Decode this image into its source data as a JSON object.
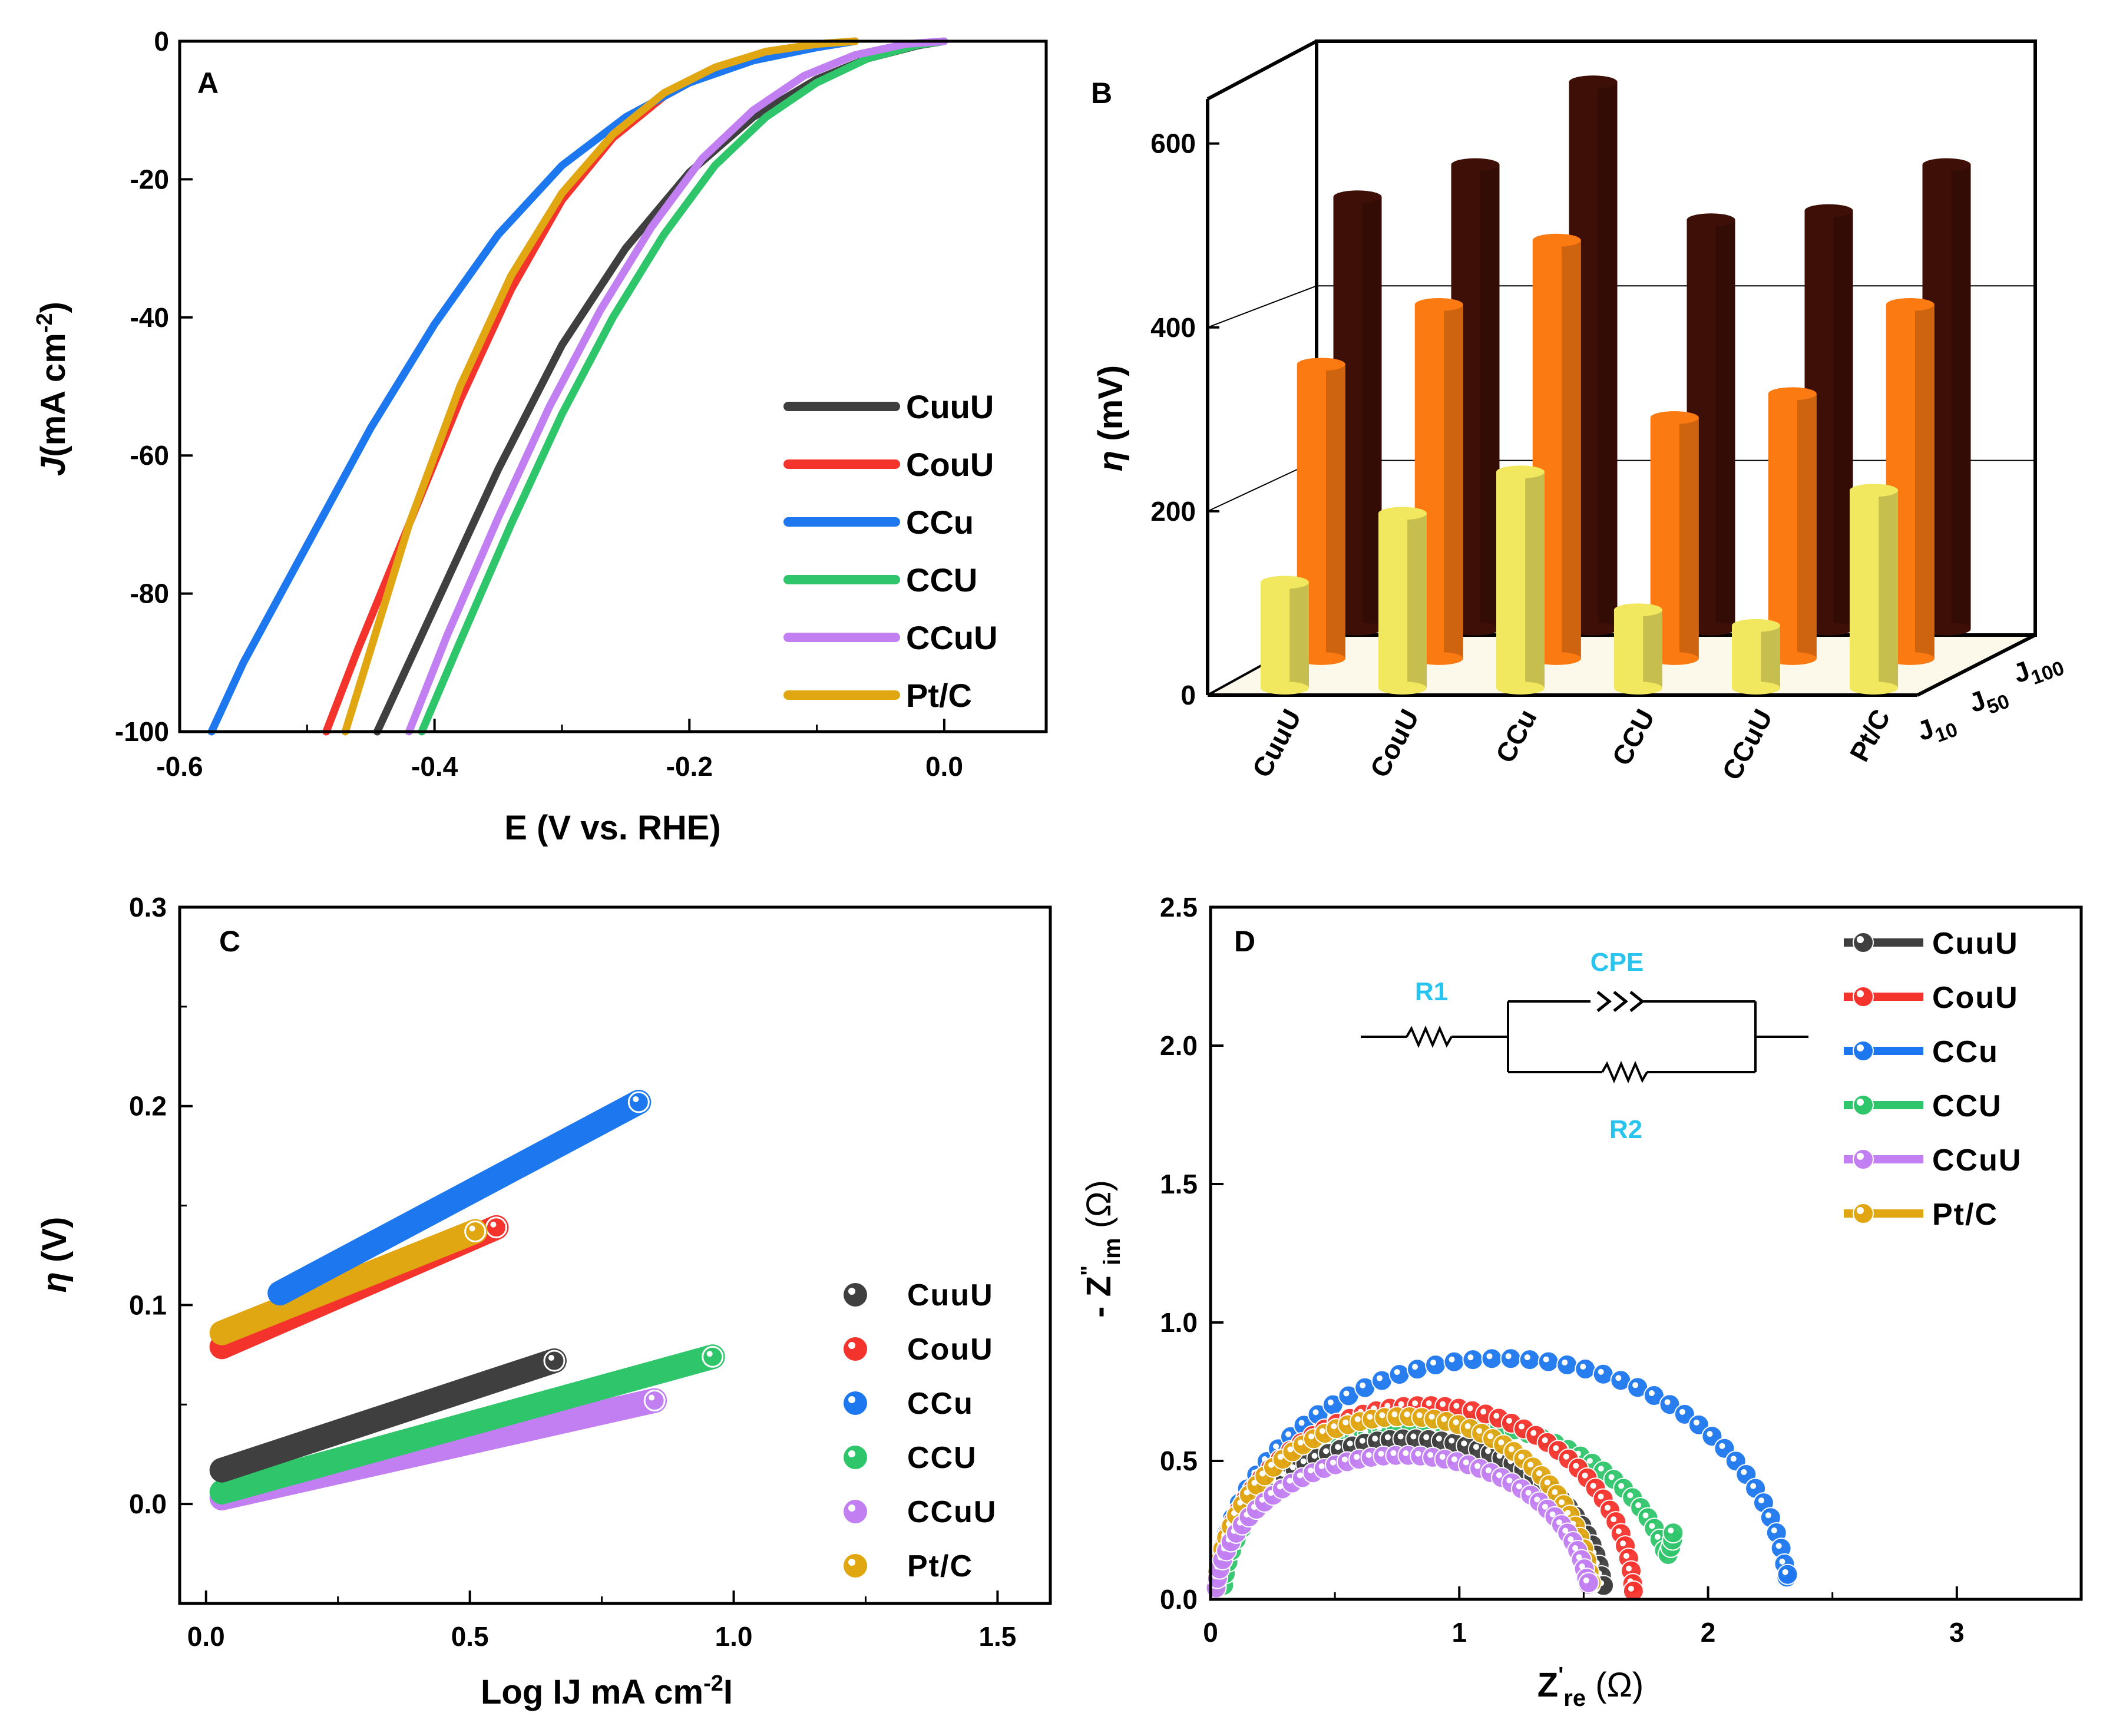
{
  "chart_data": [
    {
      "panel": "A",
      "type": "line",
      "xlabel": "E (V vs. RHE)",
      "ylabel": "J (mA cm-2)",
      "ylabel_parts": {
        "main": "J",
        "unit": "(mA cm",
        "exp": "-2",
        "close": ")"
      },
      "xlim": [
        -0.6,
        0.08
      ],
      "ylim": [
        -100,
        0
      ],
      "xticks": [
        -0.6,
        -0.4,
        -0.2,
        0.0
      ],
      "xtick_labels": [
        "-0.6",
        "-0.4",
        "-0.2",
        "0.0"
      ],
      "yticks": [
        0,
        -20,
        -40,
        -60,
        -80,
        -100
      ],
      "ytick_labels": [
        "0",
        "-20",
        "-40",
        "-60",
        "-80",
        "-100"
      ],
      "legend_position": "bottom-right",
      "series": [
        {
          "name": "CuuU",
          "color": "#3f3f3f",
          "points": [
            [
              -0.445,
              -100
            ],
            [
              -0.42,
              -90
            ],
            [
              -0.39,
              -78
            ],
            [
              -0.35,
              -62
            ],
            [
              -0.3,
              -44
            ],
            [
              -0.25,
              -30
            ],
            [
              -0.2,
              -19
            ],
            [
              -0.15,
              -11
            ],
            [
              -0.1,
              -5.5
            ],
            [
              -0.06,
              -2.5
            ],
            [
              -0.02,
              -0.6
            ],
            [
              0.0,
              0
            ]
          ]
        },
        {
          "name": "CouU",
          "color": "#f5332d",
          "points": [
            [
              -0.485,
              -100
            ],
            [
              -0.46,
              -88
            ],
            [
              -0.42,
              -70
            ],
            [
              -0.38,
              -52
            ],
            [
              -0.34,
              -36
            ],
            [
              -0.3,
              -23
            ],
            [
              -0.26,
              -14
            ],
            [
              -0.22,
              -8
            ],
            [
              -0.18,
              -4
            ],
            [
              -0.14,
              -1.8
            ],
            [
              -0.1,
              -0.6
            ],
            [
              -0.07,
              0
            ]
          ]
        },
        {
          "name": "CCu",
          "color": "#1d77ee",
          "points": [
            [
              -0.575,
              -100
            ],
            [
              -0.55,
              -90
            ],
            [
              -0.5,
              -73
            ],
            [
              -0.45,
              -56
            ],
            [
              -0.4,
              -41
            ],
            [
              -0.35,
              -28
            ],
            [
              -0.3,
              -18
            ],
            [
              -0.25,
              -11
            ],
            [
              -0.2,
              -6
            ],
            [
              -0.15,
              -2.8
            ],
            [
              -0.1,
              -0.9
            ],
            [
              -0.07,
              0
            ]
          ]
        },
        {
          "name": "CCU",
          "color": "#2fc56a",
          "points": [
            [
              -0.41,
              -100
            ],
            [
              -0.38,
              -87
            ],
            [
              -0.34,
              -70
            ],
            [
              -0.3,
              -54
            ],
            [
              -0.26,
              -40
            ],
            [
              -0.22,
              -28
            ],
            [
              -0.18,
              -18
            ],
            [
              -0.14,
              -11
            ],
            [
              -0.1,
              -6
            ],
            [
              -0.06,
              -2.5
            ],
            [
              -0.02,
              -0.5
            ],
            [
              0.0,
              0
            ]
          ]
        },
        {
          "name": "CCuU",
          "color": "#c27ff2",
          "points": [
            [
              -0.42,
              -100
            ],
            [
              -0.39,
              -86
            ],
            [
              -0.35,
              -69
            ],
            [
              -0.31,
              -53
            ],
            [
              -0.27,
              -39
            ],
            [
              -0.23,
              -27
            ],
            [
              -0.19,
              -17
            ],
            [
              -0.15,
              -10
            ],
            [
              -0.11,
              -5
            ],
            [
              -0.07,
              -2
            ],
            [
              -0.03,
              -0.4
            ],
            [
              0.0,
              0
            ]
          ]
        },
        {
          "name": "Pt/C",
          "color": "#e0a712",
          "points": [
            [
              -0.47,
              -100
            ],
            [
              -0.45,
              -88
            ],
            [
              -0.42,
              -70
            ],
            [
              -0.38,
              -50
            ],
            [
              -0.34,
              -34
            ],
            [
              -0.3,
              -22
            ],
            [
              -0.26,
              -13.5
            ],
            [
              -0.22,
              -7.5
            ],
            [
              -0.18,
              -3.8
            ],
            [
              -0.14,
              -1.5
            ],
            [
              -0.1,
              -0.4
            ],
            [
              -0.07,
              0
            ]
          ]
        }
      ]
    },
    {
      "panel": "B",
      "type": "bar",
      "subtype": "3d-grouped",
      "ylabel": "η (mV)",
      "ylabel_parts": {
        "main": "η",
        "unit": " (mV)"
      },
      "ylim": [
        0,
        660
      ],
      "yticks": [
        0,
        200,
        400,
        600
      ],
      "ytick_labels": [
        "0",
        "200",
        "400",
        "600"
      ],
      "categories": [
        "CuuU",
        "CouU",
        "CCu",
        "CCU",
        "CCuU",
        "Pt/C"
      ],
      "depth_labels": [
        {
          "main": "J",
          "sub": "10"
        },
        {
          "main": "J",
          "sub": "50"
        },
        {
          "main": "J",
          "sub": "100"
        }
      ],
      "series": [
        {
          "name": "J10",
          "color": "#f2e860",
          "values": [
            115,
            190,
            235,
            85,
            68,
            215
          ]
        },
        {
          "name": "J50",
          "color": "#fb7a12",
          "values": [
            320,
            385,
            455,
            262,
            288,
            385
          ]
        },
        {
          "name": "J100",
          "color": "#3e0f07",
          "values": [
            470,
            505,
            595,
            445,
            455,
            505
          ]
        }
      ]
    },
    {
      "panel": "C",
      "type": "scatter",
      "xlabel_parts": {
        "main": "Log IJ mA cm",
        "exp": "-2",
        "close": "I"
      },
      "ylabel": "η (V)",
      "ylabel_parts": {
        "main": "η",
        "unit": " (V)"
      },
      "xlim": [
        -0.05,
        1.6
      ],
      "ylim": [
        -0.05,
        0.3
      ],
      "xticks": [
        0.0,
        0.5,
        1.0,
        1.5
      ],
      "xtick_labels": [
        "0.0",
        "0.5",
        "1.0",
        "1.5"
      ],
      "yticks": [
        0.0,
        0.1,
        0.2,
        0.3
      ],
      "ytick_labels": [
        "0.0",
        "0.1",
        "0.2",
        "0.3"
      ],
      "legend_position": "right",
      "series": [
        {
          "name": "CuuU",
          "color": "#3f3f3f",
          "x": [
            0.03,
            0.66
          ],
          "y": [
            0.017,
            0.072
          ]
        },
        {
          "name": "CouU",
          "color": "#f5332d",
          "x": [
            0.03,
            0.55
          ],
          "y": [
            0.079,
            0.139
          ]
        },
        {
          "name": "CCu",
          "color": "#1d77ee",
          "x": [
            0.14,
            0.82
          ],
          "y": [
            0.106,
            0.202
          ]
        },
        {
          "name": "CCU",
          "color": "#2fc56a",
          "x": [
            0.03,
            0.96
          ],
          "y": [
            0.006,
            0.074
          ]
        },
        {
          "name": "CCuU",
          "color": "#c27ff2",
          "x": [
            0.03,
            0.85
          ],
          "y": [
            0.003,
            0.052
          ]
        },
        {
          "name": "Pt/C",
          "color": "#e0a712",
          "x": [
            0.03,
            0.51
          ],
          "y": [
            0.086,
            0.137
          ]
        }
      ]
    },
    {
      "panel": "D",
      "type": "scatter",
      "subtype": "nyquist",
      "xlabel_parts": {
        "main": "Z",
        "sup": "'",
        "sub": "re",
        "unit": " (Ω)"
      },
      "ylabel_parts": {
        "pre": "- Z",
        "sup": "\"",
        "sub": "im",
        "unit": " (Ω)"
      },
      "xlim": [
        0,
        3.5
      ],
      "ylim": [
        0,
        2.5
      ],
      "xticks": [
        0,
        1,
        2,
        3
      ],
      "xtick_labels": [
        "0",
        "1",
        "2",
        "3"
      ],
      "yticks": [
        0.0,
        0.5,
        1.0,
        1.5,
        2.0,
        2.5
      ],
      "ytick_labels": [
        "0.0",
        "0.5",
        "1.0",
        "1.5",
        "2.0",
        "2.5"
      ],
      "legend_position": "top-right",
      "inset_labels": {
        "r1": "R1",
        "cpe": "CPE",
        "r2": "R2"
      },
      "series": [
        {
          "name": "CuuU",
          "color": "#3f3f3f",
          "start": 0.02,
          "end": 1.58,
          "peak": 0.58,
          "tail": 0.05
        },
        {
          "name": "CouU",
          "color": "#f5332d",
          "start": 0.02,
          "end": 1.7,
          "peak": 0.7,
          "tail": 0.03
        },
        {
          "name": "CCu",
          "color": "#1d77ee",
          "start": 0.02,
          "end": 2.32,
          "peak": 0.87,
          "tail": 0.09
        },
        {
          "name": "CCU",
          "color": "#2fc56a",
          "start": 0.05,
          "end": 1.86,
          "peak": 0.64,
          "tail": 0.24
        },
        {
          "name": "CCuU",
          "color": "#c27ff2",
          "start": 0.02,
          "end": 1.52,
          "peak": 0.52,
          "tail": 0.06
        },
        {
          "name": "Pt/C",
          "color": "#e0a712",
          "start": 0.02,
          "end": 1.53,
          "peak": 0.66,
          "tail": 0.06
        }
      ]
    }
  ],
  "panel_letters": {
    "a": "A",
    "b": "B",
    "c": "C",
    "d": "D"
  }
}
